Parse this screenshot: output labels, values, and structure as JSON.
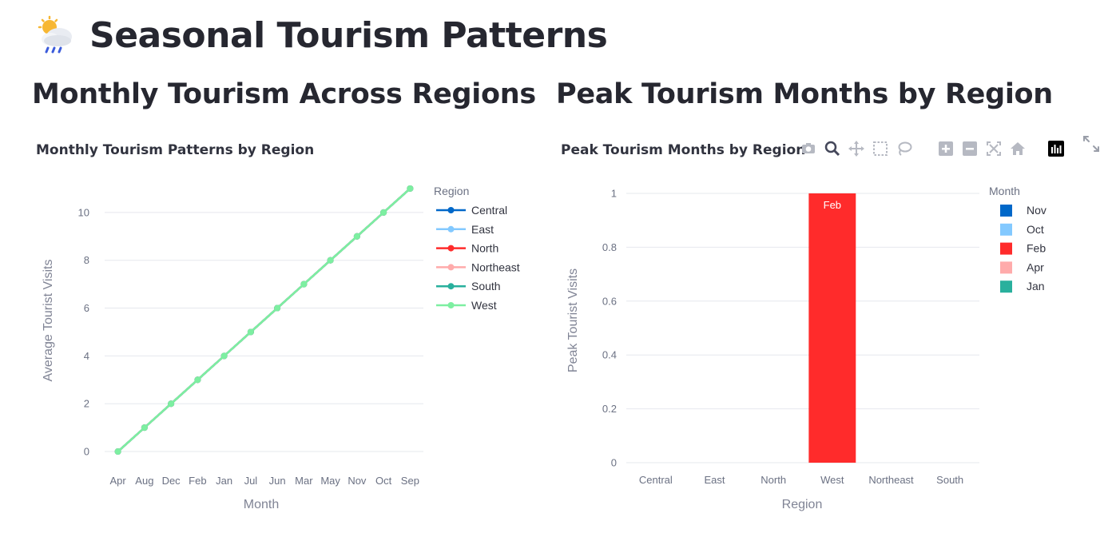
{
  "page": {
    "title": "Seasonal Tourism Patterns",
    "title_icon": "cloud-sun-rain-icon"
  },
  "sections": {
    "left_heading": "Monthly Tourism Across Regions",
    "right_heading": "Peak Tourism Months by Region"
  },
  "modebar": {
    "buttons": [
      "camera-icon",
      "zoom-icon",
      "pan-icon",
      "box-select-icon",
      "lasso-select-icon",
      "zoom-in-icon",
      "zoom-out-icon",
      "autoscale-icon",
      "reset-axes-icon",
      "plotly-logo-icon"
    ],
    "fullscreen": "fullscreen-icon"
  },
  "chart_data": [
    {
      "type": "line",
      "title": "Monthly Tourism Patterns by Region",
      "xlabel": "Month",
      "ylabel": "Average Tourist Visits",
      "categories": [
        "Apr",
        "Aug",
        "Dec",
        "Feb",
        "Jan",
        "Jul",
        "Jun",
        "Mar",
        "May",
        "Nov",
        "Oct",
        "Sep"
      ],
      "ylim": [
        -0.6,
        11.6
      ],
      "yticks": [
        0,
        2,
        4,
        6,
        8,
        10
      ],
      "grid": true,
      "legend_title": "Region",
      "legend_position": "right",
      "series": [
        {
          "name": "Central",
          "color": "#0068c9",
          "values": [
            0,
            1,
            2,
            3,
            4,
            5,
            6,
            7,
            8,
            9,
            10,
            11
          ]
        },
        {
          "name": "East",
          "color": "#83c9ff",
          "values": [
            0,
            1,
            2,
            3,
            4,
            5,
            6,
            7,
            8,
            9,
            10,
            11
          ]
        },
        {
          "name": "North",
          "color": "#ff2b2b",
          "values": [
            0,
            1,
            2,
            3,
            4,
            5,
            6,
            7,
            8,
            9,
            10,
            11
          ]
        },
        {
          "name": "Northeast",
          "color": "#ffabab",
          "values": [
            0,
            1,
            2,
            3,
            4,
            5,
            6,
            7,
            8,
            9,
            10,
            11
          ]
        },
        {
          "name": "South",
          "color": "#29b09d",
          "values": [
            0,
            1,
            2,
            3,
            4,
            5,
            6,
            7,
            8,
            9,
            10,
            11
          ]
        },
        {
          "name": "West",
          "color": "#7defa1",
          "values": [
            0,
            1,
            2,
            3,
            4,
            5,
            6,
            7,
            8,
            9,
            10,
            11
          ]
        }
      ]
    },
    {
      "type": "bar",
      "title": "Peak Tourism Months by Region",
      "xlabel": "Region",
      "ylabel": "Peak Tourist Visits",
      "categories": [
        "Central",
        "East",
        "North",
        "West",
        "Northeast",
        "South"
      ],
      "ylim": [
        0,
        1
      ],
      "yticks": [
        "0",
        "0.2",
        "0.4",
        "0.6",
        "0.8",
        "1"
      ],
      "grid": true,
      "legend_title": "Month",
      "legend_position": "right",
      "legend": [
        {
          "name": "Nov",
          "color": "#0068c9"
        },
        {
          "name": "Oct",
          "color": "#83c9ff"
        },
        {
          "name": "Feb",
          "color": "#ff2b2b"
        },
        {
          "name": "Apr",
          "color": "#ffabab"
        },
        {
          "name": "Jan",
          "color": "#29b09d"
        }
      ],
      "bars": [
        {
          "category": "West",
          "value": 1,
          "month": "Feb",
          "color": "#ff2b2b",
          "label": "Feb"
        }
      ]
    }
  ]
}
